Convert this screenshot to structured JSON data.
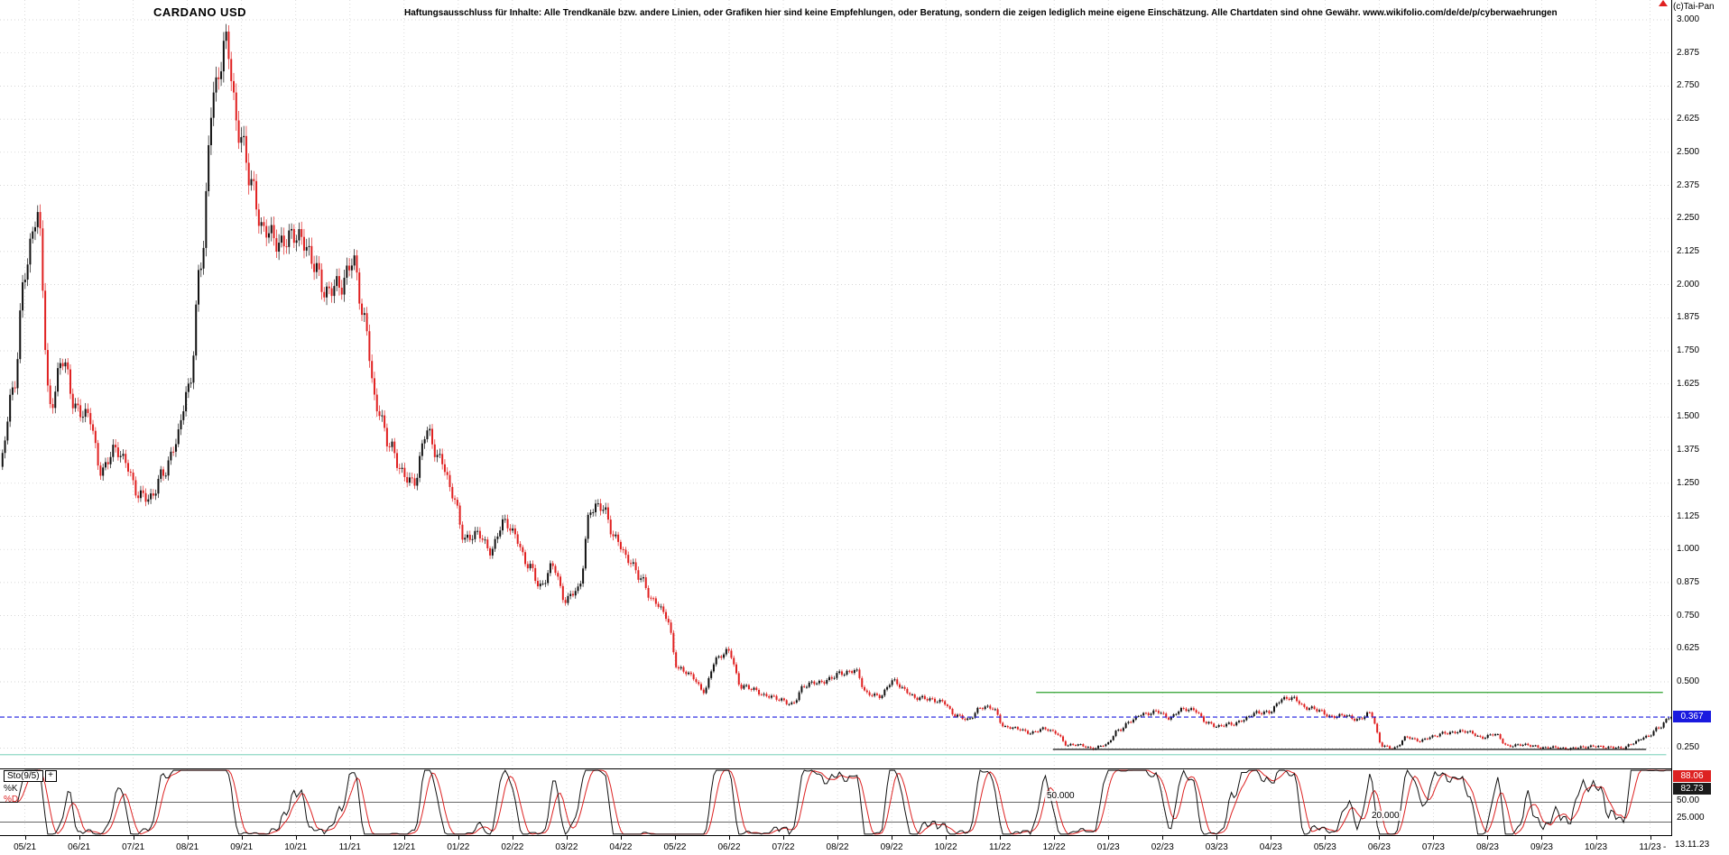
{
  "header": {
    "title": "CARDANO USD",
    "disclaimer": "Haftungsausschluss für Inhalte: Alle Trendkanäle bzw. andere Linien, oder Grafiken hier sind keine Empfehlungen, oder Beratung, sondern die zeigen lediglich meine eigene Einschätzung. Alle Chartdaten sind ohne Gewähr.  www.wikifolio.com/de/de/p/cyberwaehrungen",
    "copyright": "(c)Tai-Pan"
  },
  "indicator": {
    "label": "Sto(9/5)",
    "add_button": "+",
    "k_label": "%K",
    "d_label": "%D",
    "level_50": "50.000",
    "level_20": "20.000",
    "d_value": "88.06",
    "k_value": "82.73",
    "axis_50": "50.00",
    "axis_25": "25.000"
  },
  "footer": {
    "dash": "-",
    "date": "13.11.23"
  },
  "chart_data": {
    "type": "candlestick+stochastic",
    "title": "CARDANO USD",
    "last_price": 0.367,
    "last_price_label": "0.367",
    "x_axis": {
      "months": [
        "05/21",
        "06/21",
        "07/21",
        "08/21",
        "09/21",
        "10/21",
        "11/21",
        "12/21",
        "01/22",
        "02/22",
        "03/22",
        "04/22",
        "05/22",
        "06/22",
        "07/22",
        "08/22",
        "09/22",
        "10/22",
        "11/22",
        "12/22",
        "01/23",
        "02/23",
        "03/23",
        "04/23",
        "05/23",
        "06/23",
        "07/23",
        "08/23",
        "09/23",
        "10/23",
        "11/23"
      ],
      "end_date": "13.11.23"
    },
    "y_axis": {
      "tick_values": [
        3.0,
        2.875,
        2.75,
        2.625,
        2.5,
        2.375,
        2.25,
        2.125,
        2.0,
        1.875,
        1.75,
        1.625,
        1.5,
        1.375,
        1.25,
        1.125,
        1.0,
        0.875,
        0.75,
        0.625,
        0.5,
        0.25
      ],
      "tick_labels": [
        "3.000",
        "2.875",
        "2.750",
        "2.625",
        "2.500",
        "2.375",
        "2.250",
        "2.125",
        "2.000",
        "1.875",
        "1.750",
        "1.625",
        "1.500",
        "1.375",
        "1.250",
        "1.125",
        "1.000",
        "0.875",
        "0.750",
        "0.625",
        "0.500",
        "0.250"
      ],
      "ylim": [
        0.17,
        3.07
      ]
    },
    "price_series": {
      "interval": "weekly",
      "closes": [
        1.3,
        1.6,
        2.05,
        2.25,
        1.55,
        1.7,
        1.55,
        1.5,
        1.3,
        1.38,
        1.32,
        1.22,
        1.18,
        1.3,
        1.4,
        1.6,
        2.1,
        2.7,
        2.95,
        2.55,
        2.4,
        2.2,
        2.15,
        2.2,
        2.15,
        2.1,
        1.95,
        2.0,
        2.1,
        1.85,
        1.55,
        1.38,
        1.3,
        1.25,
        1.45,
        1.35,
        1.2,
        1.05,
        1.05,
        1.0,
        1.1,
        1.05,
        0.95,
        0.85,
        0.95,
        0.8,
        0.85,
        1.15,
        1.15,
        1.05,
        0.95,
        0.9,
        0.8,
        0.75,
        0.55,
        0.52,
        0.47,
        0.58,
        0.62,
        0.48,
        0.47,
        0.45,
        0.43,
        0.42,
        0.48,
        0.5,
        0.51,
        0.53,
        0.55,
        0.45,
        0.45,
        0.5,
        0.47,
        0.44,
        0.43,
        0.43,
        0.37,
        0.36,
        0.4,
        0.4,
        0.33,
        0.32,
        0.31,
        0.32,
        0.31,
        0.26,
        0.26,
        0.25,
        0.26,
        0.32,
        0.35,
        0.38,
        0.39,
        0.36,
        0.4,
        0.39,
        0.35,
        0.33,
        0.34,
        0.36,
        0.38,
        0.39,
        0.43,
        0.44,
        0.4,
        0.39,
        0.37,
        0.37,
        0.36,
        0.38,
        0.26,
        0.25,
        0.29,
        0.28,
        0.29,
        0.31,
        0.31,
        0.31,
        0.29,
        0.3,
        0.26,
        0.26,
        0.26,
        0.25,
        0.25,
        0.25,
        0.25,
        0.26,
        0.25,
        0.25,
        0.27,
        0.29,
        0.33,
        0.367
      ]
    },
    "overlay_lines": [
      {
        "price": 0.367,
        "color": "#1a1adf",
        "style": "dashed",
        "from": 0.0,
        "to": 0.999,
        "label": "0.367"
      },
      {
        "price": 0.46,
        "color": "#2ca02c",
        "style": "solid",
        "from": 0.62,
        "to": 0.995
      },
      {
        "price": 0.245,
        "color": "#111111",
        "style": "solid",
        "from": 0.63,
        "to": 0.985
      },
      {
        "price": 0.225,
        "color": "#8fd8c4",
        "style": "solid",
        "from": 0.0,
        "to": 0.997
      }
    ],
    "stochastic": {
      "name": "Sto(9/5)",
      "k_period": 9,
      "d_period": 5,
      "levels": [
        50.0,
        20.0
      ],
      "k_color": "#111111",
      "d_color": "#dd2222",
      "last_k": 82.73,
      "last_d": 88.06
    },
    "colors": {
      "up": "#111111",
      "down": "#e02020",
      "grid": "#c9c9c9",
      "last_price_bg": "#1a1adf",
      "d_value_bg": "#dd2222",
      "k_value_bg": "#1b1b1b"
    }
  }
}
